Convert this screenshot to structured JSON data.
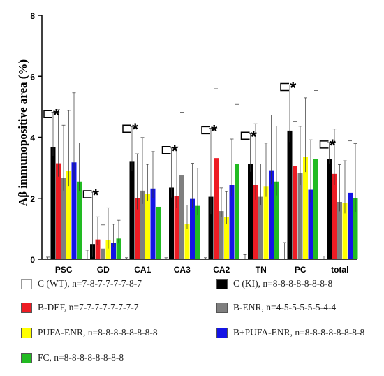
{
  "chart_data": {
    "type": "bar",
    "title": "",
    "xlabel": "",
    "ylabel": "Aβ immunopositive area (%)",
    "ylim": [
      0,
      8
    ],
    "yticks": [
      "0",
      "2",
      "4",
      "6",
      "8"
    ],
    "grid": false,
    "legend_position": "bottom",
    "categories": [
      "PSC",
      "GD",
      "CA1",
      "CA3",
      "CA2",
      "TN",
      "PC",
      "total"
    ],
    "significance_label": "*",
    "significance": [
      true,
      true,
      true,
      true,
      true,
      true,
      true,
      true
    ],
    "series": [
      {
        "name": "C (WT), n=7-8-7-7-7-7-8-7",
        "color": "#ffffff",
        "values": [
          0.02,
          0.0,
          0.0,
          0.0,
          0.0,
          0.0,
          0.0,
          0.0
        ],
        "errors": [
          0.05,
          0.3,
          0.05,
          0.05,
          0.05,
          0.15,
          0.55,
          0.1
        ]
      },
      {
        "name": "C (KI), n=8-8-8-8-8-8-8-8",
        "color": "#000000",
        "values": [
          3.68,
          0.5,
          3.2,
          2.35,
          2.05,
          3.12,
          4.22,
          3.28
        ],
        "errors": [
          1.15,
          1.7,
          1.15,
          1.3,
          2.25,
          1.0,
          1.5,
          0.55
        ]
      },
      {
        "name": "B-DEF, n=7-7-7-7-7-7-7-7",
        "color": "#ee1c24",
        "values": [
          3.15,
          0.65,
          2.0,
          2.08,
          3.32,
          2.45,
          3.05,
          2.8
        ]
      },
      {
        "name": "B-ENR, n=4-5-5-5-5-5-4-4",
        "color": "#7f7f7f",
        "values": [
          2.68,
          0.35,
          2.25,
          2.75,
          1.58,
          2.05,
          2.82,
          1.88
        ]
      },
      {
        "name": "PUFA-ENR, n=8-8-8-8-8-8-8-8",
        "color": "#ffff00",
        "values": [
          2.9,
          0.62,
          2.15,
          1.15,
          1.38,
          2.4,
          3.35,
          1.85
        ]
      },
      {
        "name": "B+PUFA-ENR, n=8-8-8-8-8-8-8-8",
        "color": "#1414e6",
        "values": [
          3.18,
          0.55,
          2.32,
          1.98,
          2.45,
          2.92,
          2.28,
          2.18
        ]
      },
      {
        "name": "FC, n=8-8-8-8-8-8-8-8",
        "color": "#22bb22",
        "values": [
          2.55,
          0.68,
          1.72,
          1.75,
          3.12,
          2.55,
          3.28,
          2.0
        ]
      }
    ]
  }
}
